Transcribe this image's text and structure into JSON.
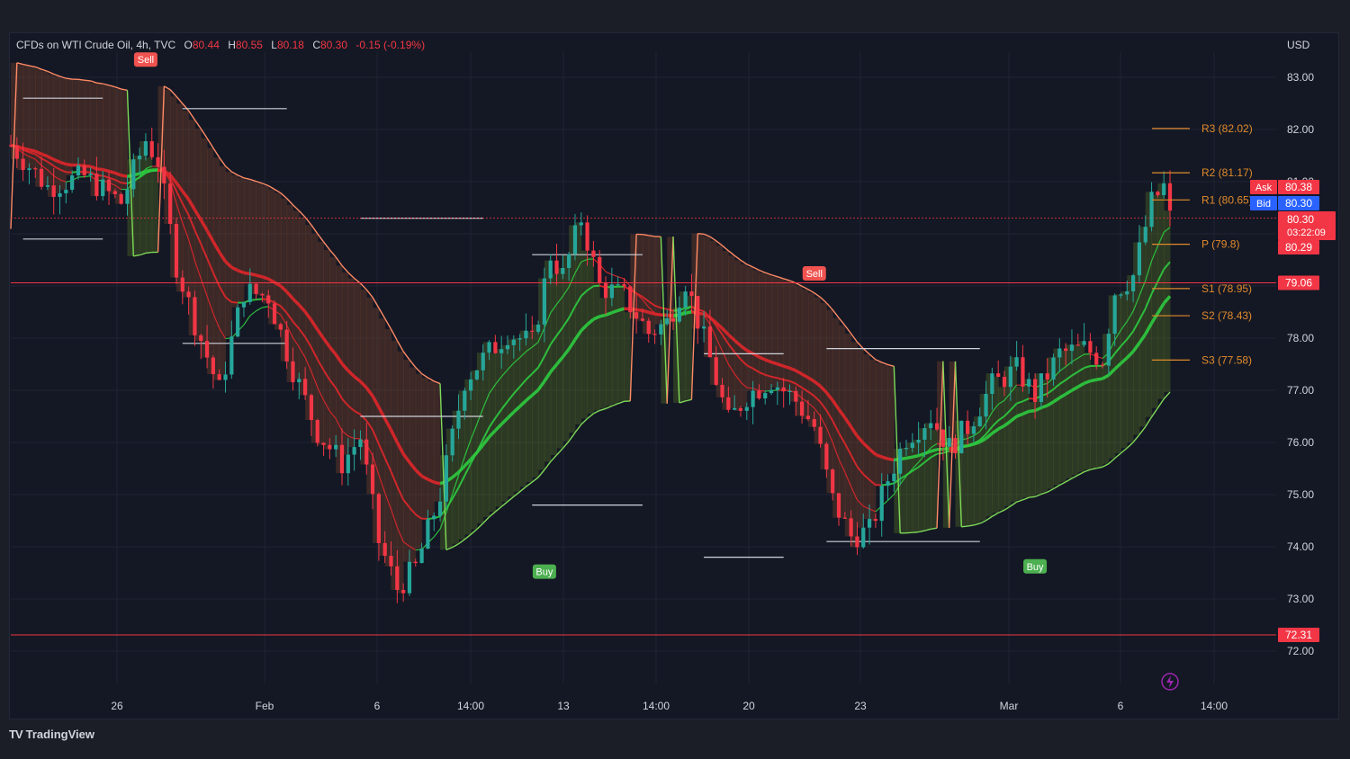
{
  "legend": {
    "symbol": "CFDs on WTI Crude Oil, 4h, TVC",
    "open_key": "O",
    "open": "80.44",
    "high_key": "H",
    "high": "80.55",
    "low_key": "L",
    "low": "80.18",
    "close_key": "C",
    "close": "80.30",
    "change": "-0.15 (-0.19%)"
  },
  "currency": "USD",
  "brand": {
    "logo": "TV",
    "name": "TradingView"
  },
  "colors": {
    "up": "#26a69a",
    "down": "#f23645",
    "bg": "#141824",
    "pivot": "#e08a2c",
    "sell": "#f0524f",
    "buy": "#4caf50",
    "price_line": "#f23645",
    "bid": "#2962ff"
  },
  "chart_data": {
    "type": "candlestick",
    "y_axis": {
      "ticks": [
        "83.00",
        "82.00",
        "81.00",
        "80.00",
        "79.00",
        "78.00",
        "77.00",
        "76.00",
        "75.00",
        "74.00",
        "73.00",
        "72.00"
      ],
      "ylim": [
        71.5,
        83.5
      ]
    },
    "x_axis": {
      "ticks": [
        "26",
        "Feb",
        "6",
        "14:00",
        "13",
        "14:00",
        "20",
        "23",
        "Mar",
        "6",
        "14:00"
      ]
    },
    "pivot_levels": [
      {
        "label": "R3 (82.02)",
        "value": 82.02
      },
      {
        "label": "R2 (81.17)",
        "value": 81.17
      },
      {
        "label": "R1 (80.65)",
        "value": 80.65
      },
      {
        "label": "P (79.8)",
        "value": 79.8
      },
      {
        "label": "S1 (78.95)",
        "value": 78.95
      },
      {
        "label": "S2 (78.43)",
        "value": 78.43
      },
      {
        "label": "S3 (77.58)",
        "value": 77.58
      }
    ],
    "horizontal_lines": [
      {
        "label": "79.06",
        "value": 79.06
      },
      {
        "label": "72.31",
        "value": 72.31
      }
    ],
    "price_tags": {
      "ask_label": "Ask",
      "ask": "80.38",
      "bid_label": "Bid",
      "bid": "80.30",
      "last": "80.30",
      "countdown": "03:22:09",
      "low_tag": "80.29"
    },
    "signals": [
      {
        "label": "Sell",
        "x": "2023-01-26T16:00",
        "price": 83.1
      },
      {
        "label": "Buy",
        "x": "2023-02-10T12:00",
        "price": 73.8
      },
      {
        "label": "Sell",
        "x": "2023-02-21T20:00",
        "price": 79.0
      },
      {
        "label": "Buy",
        "x": "2023-03-01T20:00",
        "price": 73.9
      }
    ],
    "price_path": [
      [
        "2023-01-23T00:00",
        81.7
      ],
      [
        "2023-01-24T00:00",
        80.9
      ],
      [
        "2023-01-25T00:00",
        81.1
      ],
      [
        "2023-01-26T00:00",
        80.6
      ],
      [
        "2023-01-26T16:00",
        81.8
      ],
      [
        "2023-01-27T00:00",
        81.4
      ],
      [
        "2023-01-27T12:00",
        79.4
      ],
      [
        "2023-01-30T00:00",
        78.3
      ],
      [
        "2023-01-30T16:00",
        77.0
      ],
      [
        "2023-01-31T08:00",
        78.9
      ],
      [
        "2023-02-01T00:00",
        78.8
      ],
      [
        "2023-02-01T16:00",
        77.4
      ],
      [
        "2023-02-02T08:00",
        76.2
      ],
      [
        "2023-02-03T00:00",
        75.6
      ],
      [
        "2023-02-03T12:00",
        76.1
      ],
      [
        "2023-02-06T00:00",
        74.1
      ],
      [
        "2023-02-06T12:00",
        73.2
      ],
      [
        "2023-02-07T00:00",
        73.6
      ],
      [
        "2023-02-07T16:00",
        75.0
      ],
      [
        "2023-02-08T08:00",
        77.2
      ],
      [
        "2023-02-08T20:00",
        77.6
      ],
      [
        "2023-02-09T12:00",
        78.1
      ],
      [
        "2023-02-10T04:00",
        77.9
      ],
      [
        "2023-02-10T16:00",
        79.6
      ],
      [
        "2023-02-13T00:00",
        79.2
      ],
      [
        "2023-02-13T12:00",
        80.3
      ],
      [
        "2023-02-14T00:00",
        79.0
      ],
      [
        "2023-02-14T16:00",
        78.8
      ],
      [
        "2023-02-15T08:00",
        78.1
      ],
      [
        "2023-02-15T20:00",
        78.3
      ],
      [
        "2023-02-16T08:00",
        79.1
      ],
      [
        "2023-02-17T00:00",
        77.6
      ],
      [
        "2023-02-17T12:00",
        76.4
      ],
      [
        "2023-02-20T00:00",
        76.9
      ],
      [
        "2023-02-20T16:00",
        77.2
      ],
      [
        "2023-02-21T08:00",
        76.8
      ],
      [
        "2023-02-21T20:00",
        76.3
      ],
      [
        "2023-02-22T08:00",
        74.9
      ],
      [
        "2023-02-22T20:00",
        74.2
      ],
      [
        "2023-02-23T08:00",
        74.3
      ],
      [
        "2023-02-23T20:00",
        75.3
      ],
      [
        "2023-02-24T08:00",
        76.1
      ],
      [
        "2023-02-27T00:00",
        76.5
      ],
      [
        "2023-02-27T12:00",
        75.9
      ],
      [
        "2023-02-28T00:00",
        76.3
      ],
      [
        "2023-02-28T16:00",
        77.1
      ],
      [
        "2023-03-01T08:00",
        77.4
      ],
      [
        "2023-03-01T20:00",
        76.9
      ],
      [
        "2023-03-02T12:00",
        77.7
      ],
      [
        "2023-03-03T04:00",
        77.8
      ],
      [
        "2023-03-03T16:00",
        77.6
      ],
      [
        "2023-03-06T00:00",
        78.9
      ],
      [
        "2023-03-06T12:00",
        79.2
      ],
      [
        "2023-03-07T00:00",
        80.6
      ],
      [
        "2023-03-07T08:00",
        80.9
      ],
      [
        "2023-03-07T12:00",
        80.3
      ]
    ]
  }
}
